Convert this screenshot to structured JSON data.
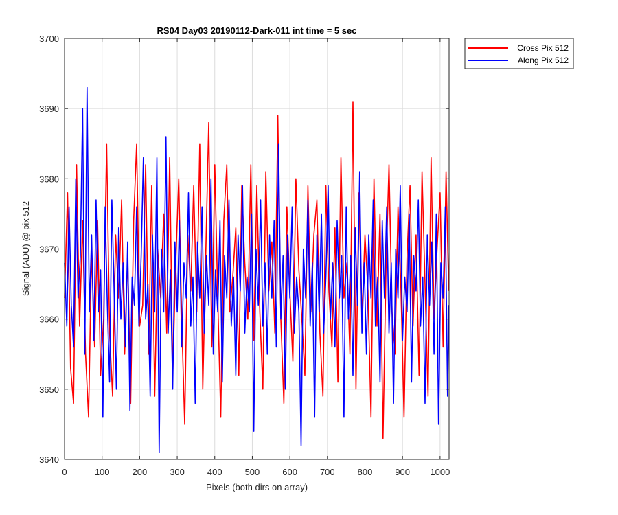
{
  "chart_data": {
    "type": "line",
    "title": "RS04 Day03 20190112-Dark-011 int time = 5 sec",
    "xlabel": "Pixels (both dirs on array)",
    "ylabel": "Signal (ADU) @ pix 512",
    "xlim": [
      0,
      1024
    ],
    "ylim": [
      3640,
      3700
    ],
    "xticks": [
      0,
      100,
      200,
      300,
      400,
      500,
      600,
      700,
      800,
      900,
      1000
    ],
    "yticks": [
      3640,
      3650,
      3660,
      3670,
      3680,
      3690,
      3700
    ],
    "grid": true,
    "legend_position": "outside-top-right",
    "series": [
      {
        "name": "Cross Pix 512",
        "color": "#ff0000",
        "x": [
          0,
          8,
          16,
          24,
          32,
          40,
          48,
          56,
          64,
          72,
          80,
          88,
          96,
          104,
          112,
          120,
          128,
          136,
          144,
          152,
          160,
          168,
          176,
          184,
          192,
          200,
          208,
          216,
          224,
          232,
          240,
          248,
          256,
          264,
          272,
          280,
          288,
          296,
          304,
          312,
          320,
          328,
          336,
          344,
          352,
          360,
          368,
          376,
          384,
          392,
          400,
          408,
          416,
          424,
          432,
          440,
          448,
          456,
          464,
          472,
          480,
          488,
          496,
          504,
          512,
          520,
          528,
          536,
          544,
          552,
          560,
          568,
          576,
          584,
          592,
          600,
          608,
          616,
          624,
          632,
          640,
          648,
          656,
          664,
          672,
          680,
          688,
          696,
          704,
          712,
          720,
          728,
          736,
          744,
          752,
          760,
          768,
          776,
          784,
          792,
          800,
          808,
          816,
          824,
          832,
          840,
          848,
          856,
          864,
          872,
          880,
          888,
          896,
          904,
          912,
          920,
          928,
          936,
          944,
          952,
          960,
          968,
          976,
          984,
          992,
          1000,
          1008,
          1016,
          1023
        ],
        "y": [
          3663,
          3678,
          3653,
          3648,
          3682,
          3659,
          3674,
          3655,
          3646,
          3670,
          3656,
          3674,
          3652,
          3660,
          3685,
          3658,
          3649,
          3672,
          3663,
          3677,
          3655,
          3669,
          3648,
          3674,
          3685,
          3659,
          3662,
          3682,
          3655,
          3679,
          3649,
          3670,
          3663,
          3675,
          3658,
          3683,
          3652,
          3668,
          3680,
          3660,
          3645,
          3672,
          3664,
          3679,
          3661,
          3685,
          3650,
          3669,
          3688,
          3656,
          3682,
          3663,
          3646,
          3674,
          3682,
          3661,
          3666,
          3673,
          3652,
          3679,
          3668,
          3660,
          3682,
          3657,
          3679,
          3661,
          3650,
          3681,
          3664,
          3671,
          3658,
          3689,
          3660,
          3648,
          3676,
          3664,
          3654,
          3680,
          3667,
          3660,
          3652,
          3679,
          3661,
          3672,
          3677,
          3658,
          3649,
          3679,
          3664,
          3656,
          3673,
          3651,
          3683,
          3663,
          3668,
          3655,
          3691,
          3650,
          3678,
          3660,
          3672,
          3664,
          3646,
          3680,
          3659,
          3675,
          3643,
          3667,
          3682,
          3661,
          3655,
          3676,
          3664,
          3646,
          3669,
          3679,
          3659,
          3672,
          3652,
          3681,
          3665,
          3649,
          3683,
          3660,
          3670,
          3678,
          3656,
          3681,
          3664
        ]
      },
      {
        "name": "Along Pix 512",
        "color": "#0000ff",
        "x": [
          0,
          6,
          12,
          18,
          24,
          30,
          36,
          42,
          48,
          54,
          60,
          66,
          72,
          78,
          84,
          90,
          96,
          102,
          108,
          114,
          120,
          126,
          132,
          138,
          144,
          150,
          156,
          162,
          168,
          174,
          180,
          186,
          192,
          198,
          204,
          210,
          216,
          222,
          228,
          234,
          240,
          246,
          252,
          258,
          264,
          270,
          276,
          282,
          288,
          294,
          300,
          306,
          312,
          318,
          324,
          330,
          336,
          342,
          348,
          354,
          360,
          366,
          372,
          378,
          384,
          390,
          396,
          402,
          408,
          414,
          420,
          426,
          432,
          438,
          444,
          450,
          456,
          462,
          468,
          474,
          480,
          486,
          492,
          498,
          504,
          510,
          516,
          522,
          528,
          534,
          540,
          546,
          552,
          558,
          564,
          570,
          576,
          582,
          588,
          594,
          600,
          606,
          612,
          618,
          624,
          630,
          636,
          642,
          648,
          654,
          660,
          666,
          672,
          678,
          684,
          690,
          696,
          702,
          708,
          714,
          720,
          726,
          732,
          738,
          744,
          750,
          756,
          762,
          768,
          774,
          780,
          786,
          792,
          798,
          804,
          810,
          816,
          822,
          828,
          834,
          840,
          846,
          852,
          858,
          864,
          870,
          876,
          882,
          888,
          894,
          900,
          906,
          912,
          918,
          924,
          930,
          936,
          942,
          948,
          954,
          960,
          966,
          972,
          978,
          984,
          990,
          996,
          1002,
          1008,
          1014,
          1020,
          1023
        ],
        "y": [
          3668,
          3659,
          3676,
          3662,
          3656,
          3680,
          3663,
          3669,
          3690,
          3655,
          3693,
          3661,
          3672,
          3657,
          3677,
          3661,
          3667,
          3646,
          3676,
          3662,
          3651,
          3677,
          3664,
          3650,
          3673,
          3660,
          3668,
          3656,
          3671,
          3647,
          3666,
          3662,
          3676,
          3659,
          3669,
          3683,
          3660,
          3665,
          3649,
          3672,
          3661,
          3683,
          3641,
          3670,
          3661,
          3686,
          3658,
          3667,
          3650,
          3671,
          3661,
          3674,
          3656,
          3668,
          3663,
          3678,
          3659,
          3666,
          3648,
          3671,
          3663,
          3676,
          3658,
          3669,
          3662,
          3680,
          3655,
          3667,
          3661,
          3674,
          3651,
          3669,
          3663,
          3677,
          3659,
          3666,
          3652,
          3672,
          3664,
          3679,
          3658,
          3666,
          3661,
          3675,
          3644,
          3670,
          3662,
          3677,
          3659,
          3668,
          3655,
          3672,
          3663,
          3674,
          3656,
          3685,
          3660,
          3669,
          3650,
          3672,
          3663,
          3676,
          3658,
          3666,
          3661,
          3642,
          3670,
          3663,
          3677,
          3659,
          3668,
          3646,
          3672,
          3661,
          3675,
          3658,
          3666,
          3679,
          3660,
          3668,
          3656,
          3674,
          3663,
          3669,
          3646,
          3676,
          3660,
          3669,
          3652,
          3673,
          3662,
          3681,
          3658,
          3668,
          3655,
          3672,
          3663,
          3677,
          3659,
          3666,
          3651,
          3674,
          3663,
          3676,
          3658,
          3668,
          3648,
          3670,
          3663,
          3679,
          3657,
          3666,
          3661,
          3675,
          3651,
          3669,
          3664,
          3677,
          3659,
          3666,
          3648,
          3672,
          3662,
          3671,
          3655,
          3675,
          3645,
          3668,
          3663,
          3676,
          3649,
          3662
        ]
      }
    ]
  }
}
